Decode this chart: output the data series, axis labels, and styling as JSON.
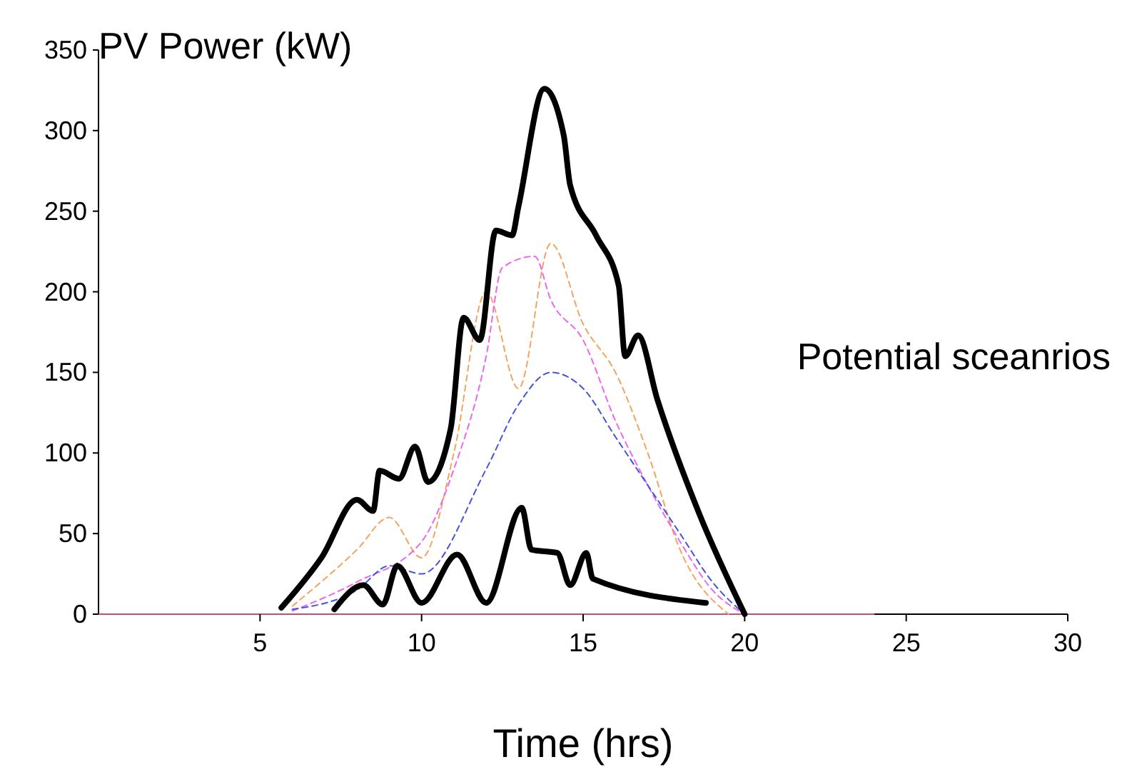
{
  "chart_data": {
    "type": "line",
    "xlabel": "Time (hrs)",
    "ylabel": "PV Power (kW)",
    "xlim": [
      0,
      30
    ],
    "xticks": [
      5,
      10,
      15,
      20,
      25,
      30
    ],
    "ylim": [
      0,
      350
    ],
    "yticks": [
      0,
      50,
      100,
      150,
      200,
      250,
      300,
      350
    ],
    "grid": false,
    "annotations": [
      "Potential sceanrios"
    ],
    "series": [
      {
        "color": "#c0507a",
        "x": [
          0,
          24
        ],
        "values": [
          0,
          0
        ],
        "line_style": "solid"
      },
      {
        "color": "#f4a460",
        "x": [
          6,
          8,
          9,
          10,
          11,
          12,
          13,
          14,
          15,
          16,
          17,
          18,
          19.5
        ],
        "values": [
          5,
          40,
          60,
          35,
          100,
          200,
          140,
          230,
          180,
          150,
          100,
          40,
          0
        ],
        "line_style": "dashed"
      },
      {
        "color": "#ee66ee",
        "x": [
          6,
          8,
          10,
          11,
          12,
          12.5,
          13.5,
          14,
          15,
          16,
          17,
          18,
          19,
          20
        ],
        "values": [
          2,
          20,
          45,
          90,
          160,
          215,
          222,
          195,
          170,
          120,
          80,
          45,
          15,
          0
        ],
        "line_style": "dashed"
      },
      {
        "color": "#4455dd",
        "x": [
          6,
          8,
          9,
          10,
          12,
          13,
          14,
          15,
          16,
          17,
          18,
          19,
          20
        ],
        "values": [
          3,
          15,
          30,
          25,
          90,
          130,
          150,
          140,
          110,
          80,
          50,
          20,
          0
        ],
        "line_style": "dashed"
      },
      {
        "color": "#000000",
        "x": [
          5.66,
          6.9,
          8.0,
          8.5,
          8.7,
          9.3,
          9.8,
          10.2,
          10.9,
          11.3,
          11.8,
          12.3,
          12.8,
          13.0,
          13.8,
          14.4,
          14.6,
          15.4,
          16.1,
          16.3,
          16.7,
          17.3,
          18.6,
          20.0
        ],
        "values": [
          4,
          35,
          71,
          64,
          89,
          84,
          104,
          82,
          115,
          184,
          170,
          238,
          235,
          253,
          326,
          297,
          266,
          235,
          204,
          160,
          173,
          133,
          62,
          0
        ],
        "line_style": "solid"
      },
      {
        "color": "#000000",
        "x": [
          7.3,
          8.2,
          8.8,
          9.25,
          10,
          11.1,
          12,
          13.1,
          13.4,
          14.2,
          14.6,
          15.1,
          15.3,
          18.8
        ],
        "values": [
          3,
          18,
          6,
          30,
          7,
          37,
          7,
          66,
          40,
          38,
          18,
          38,
          22,
          7
        ],
        "line_style": "solid"
      }
    ]
  }
}
